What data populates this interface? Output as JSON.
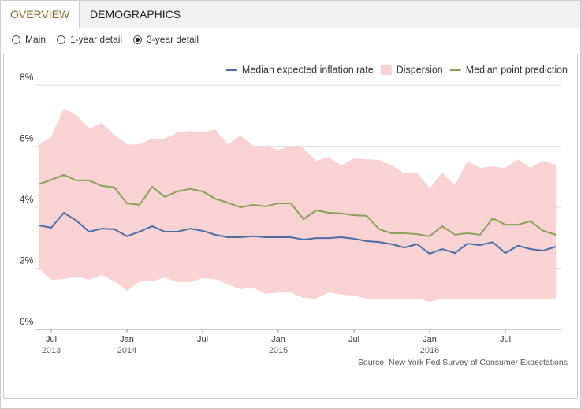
{
  "tabs": {
    "items": [
      "OVERVIEW",
      "DEMOGRAPHICS"
    ],
    "active": 0
  },
  "controls": {
    "options": [
      "Main",
      "1-year detail",
      "3-year detail"
    ],
    "selected": 2
  },
  "chart_data": {
    "type": "line",
    "source": "Source: New York Fed Survey of Consumer Expectations",
    "x": [
      "2013-06",
      "2013-07",
      "2013-08",
      "2013-09",
      "2013-10",
      "2013-11",
      "2013-12",
      "2014-01",
      "2014-02",
      "2014-03",
      "2014-04",
      "2014-05",
      "2014-06",
      "2014-07",
      "2014-08",
      "2014-09",
      "2014-10",
      "2014-11",
      "2014-12",
      "2015-01",
      "2015-02",
      "2015-03",
      "2015-04",
      "2015-05",
      "2015-06",
      "2015-07",
      "2015-08",
      "2015-09",
      "2015-10",
      "2015-11",
      "2015-12",
      "2016-01",
      "2016-02",
      "2016-03",
      "2016-04",
      "2016-05",
      "2016-06",
      "2016-07",
      "2016-08",
      "2016-09",
      "2016-10",
      "2016-11"
    ],
    "xlim": [
      "2013-06",
      "2016-11"
    ],
    "xticks": [
      {
        "value": "2013-07",
        "label": "Jul"
      },
      {
        "value": "2014-01",
        "label": "Jan"
      },
      {
        "value": "2014-07",
        "label": "Jul"
      },
      {
        "value": "2015-01",
        "label": "Jan"
      },
      {
        "value": "2015-07",
        "label": "Jul"
      },
      {
        "value": "2016-01",
        "label": "Jan"
      },
      {
        "value": "2016-07",
        "label": "Jul"
      }
    ],
    "xticks_years": [
      {
        "value": "2013-07",
        "label": "2013"
      },
      {
        "value": "2014-01",
        "label": "2014"
      },
      {
        "value": "2015-01",
        "label": "2015"
      },
      {
        "value": "2016-01",
        "label": "2016"
      }
    ],
    "ylim": [
      0,
      8
    ],
    "yticks": [
      {
        "value": 0,
        "label": "0%"
      },
      {
        "value": 2,
        "label": "2%"
      },
      {
        "value": 4,
        "label": "4%"
      },
      {
        "value": 6,
        "label": "6%"
      },
      {
        "value": 8,
        "label": "8%"
      }
    ],
    "grid": true,
    "legend": "top-right",
    "series": [
      {
        "name": "Median expected inflation rate",
        "color": "#4a6da6",
        "values": [
          3.41,
          3.33,
          3.82,
          3.56,
          3.2,
          3.3,
          3.28,
          3.05,
          3.2,
          3.38,
          3.2,
          3.2,
          3.3,
          3.23,
          3.1,
          3.02,
          3.02,
          3.05,
          3.02,
          3.02,
          3.02,
          2.94,
          2.99,
          2.99,
          3.02,
          2.97,
          2.89,
          2.86,
          2.79,
          2.68,
          2.79,
          2.48,
          2.63,
          2.5,
          2.81,
          2.76,
          2.86,
          2.5,
          2.74,
          2.63,
          2.58,
          2.71
        ]
      },
      {
        "name": "Dispersion",
        "color": "#f9d3d3",
        "band": true,
        "upper": [
          6.04,
          6.32,
          7.23,
          7.02,
          6.58,
          6.76,
          6.37,
          6.06,
          6.06,
          6.25,
          6.25,
          6.45,
          6.5,
          6.45,
          6.55,
          6.06,
          6.35,
          6.01,
          6.01,
          5.88,
          6.01,
          5.94,
          5.52,
          5.65,
          5.37,
          5.6,
          5.57,
          5.55,
          5.37,
          5.11,
          5.14,
          4.62,
          5.14,
          4.72,
          5.52,
          5.29,
          5.34,
          5.29,
          5.57,
          5.29,
          5.52,
          5.39
        ],
        "lower": [
          1.99,
          1.63,
          1.65,
          1.73,
          1.63,
          1.78,
          1.57,
          1.26,
          1.57,
          1.57,
          1.7,
          1.55,
          1.55,
          1.68,
          1.65,
          1.47,
          1.32,
          1.37,
          1.16,
          1.21,
          1.21,
          1.03,
          1.01,
          1.21,
          1.14,
          1.11,
          1.01,
          1.01,
          1.01,
          1.01,
          1.01,
          0.9,
          1.01,
          1.01,
          1.01,
          1.01,
          1.01,
          1.01,
          1.01,
          1.01,
          1.01,
          1.01
        ]
      },
      {
        "name": "Median point prediction",
        "color": "#8aa05a",
        "values": [
          4.75,
          4.9,
          5.06,
          4.88,
          4.88,
          4.7,
          4.65,
          4.13,
          4.08,
          4.67,
          4.34,
          4.52,
          4.6,
          4.52,
          4.28,
          4.15,
          4.0,
          4.08,
          4.03,
          4.13,
          4.13,
          3.61,
          3.9,
          3.82,
          3.8,
          3.74,
          3.72,
          3.28,
          3.15,
          3.15,
          3.12,
          3.05,
          3.38,
          3.1,
          3.15,
          3.1,
          3.64,
          3.43,
          3.43,
          3.54,
          3.23,
          3.1
        ]
      }
    ]
  }
}
